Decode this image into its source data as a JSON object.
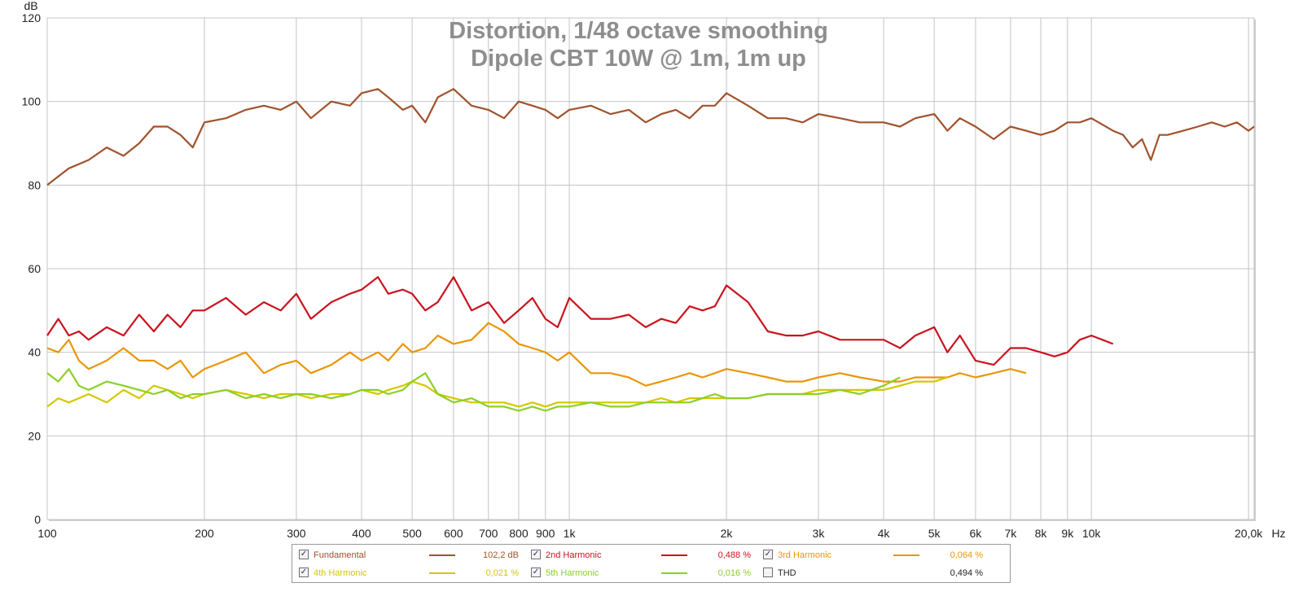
{
  "chart_data": {
    "type": "line",
    "title": "Distortion, 1/48 octave smoothing",
    "subtitle": "Dipole CBT 10W @ 1m, 1m up",
    "ylabel": "dB",
    "xunit": "Hz",
    "xscale": "log",
    "xlim": [
      100,
      20500
    ],
    "ylim": [
      0,
      120
    ],
    "grid": true,
    "yticks": [
      0,
      20,
      40,
      60,
      80,
      100,
      120
    ],
    "xticks": [
      {
        "v": 100,
        "label": "100"
      },
      {
        "v": 200,
        "label": "200"
      },
      {
        "v": 300,
        "label": "300"
      },
      {
        "v": 400,
        "label": "400"
      },
      {
        "v": 500,
        "label": "500"
      },
      {
        "v": 600,
        "label": "600"
      },
      {
        "v": 700,
        "label": "700"
      },
      {
        "v": 800,
        "label": "800"
      },
      {
        "v": 900,
        "label": "900"
      },
      {
        "v": 1000,
        "label": "1k"
      },
      {
        "v": 2000,
        "label": "2k"
      },
      {
        "v": 3000,
        "label": "3k"
      },
      {
        "v": 4000,
        "label": "4k"
      },
      {
        "v": 5000,
        "label": "5k"
      },
      {
        "v": 6000,
        "label": "6k"
      },
      {
        "v": 7000,
        "label": "7k"
      },
      {
        "v": 8000,
        "label": "8k"
      },
      {
        "v": 9000,
        "label": "9k"
      },
      {
        "v": 10000,
        "label": "10k"
      },
      {
        "v": 20000,
        "label": "20,0k"
      }
    ],
    "series": [
      {
        "name": "Fundamental",
        "color": "#a0522d",
        "x": [
          100,
          110,
          120,
          130,
          140,
          150,
          160,
          170,
          180,
          190,
          200,
          220,
          240,
          260,
          280,
          300,
          320,
          350,
          380,
          400,
          430,
          450,
          480,
          500,
          530,
          560,
          600,
          650,
          700,
          750,
          800,
          850,
          900,
          950,
          1000,
          1100,
          1200,
          1300,
          1400,
          1500,
          1600,
          1700,
          1800,
          1900,
          2000,
          2200,
          2400,
          2600,
          2800,
          3000,
          3300,
          3600,
          4000,
          4300,
          4600,
          5000,
          5300,
          5600,
          6000,
          6500,
          7000,
          7500,
          8000,
          8500,
          9000,
          9500,
          10000,
          11000,
          11500,
          12000,
          12500,
          13000,
          13500,
          14000,
          15000,
          16000,
          17000,
          18000,
          19000,
          20000,
          20500
        ],
        "y": [
          80,
          84,
          86,
          89,
          87,
          90,
          94,
          94,
          92,
          89,
          95,
          96,
          98,
          99,
          98,
          100,
          96,
          100,
          99,
          102,
          103,
          101,
          98,
          99,
          95,
          101,
          103,
          99,
          98,
          96,
          100,
          99,
          98,
          96,
          98,
          99,
          97,
          98,
          95,
          97,
          98,
          96,
          99,
          99,
          102,
          99,
          96,
          96,
          95,
          97,
          96,
          95,
          95,
          94,
          96,
          97,
          93,
          96,
          94,
          91,
          94,
          93,
          92,
          93,
          95,
          95,
          96,
          93,
          92,
          89,
          91,
          86,
          92,
          92,
          93,
          94,
          95,
          94,
          95,
          93,
          94
        ]
      },
      {
        "name": "2nd Harmonic",
        "color": "#c8141e",
        "x": [
          100,
          105,
          110,
          115,
          120,
          130,
          140,
          150,
          160,
          170,
          180,
          190,
          200,
          220,
          240,
          260,
          280,
          300,
          320,
          350,
          380,
          400,
          430,
          450,
          480,
          500,
          530,
          560,
          600,
          650,
          700,
          750,
          800,
          850,
          900,
          950,
          1000,
          1100,
          1200,
          1300,
          1400,
          1500,
          1600,
          1700,
          1800,
          1900,
          2000,
          2200,
          2400,
          2600,
          2800,
          3000,
          3300,
          3600,
          4000,
          4300,
          4600,
          5000,
          5300,
          5600,
          6000,
          6500,
          7000,
          7500,
          8000,
          8500,
          9000,
          9500,
          10000,
          10500,
          11000
        ],
        "y": [
          44,
          48,
          44,
          45,
          43,
          46,
          44,
          49,
          45,
          49,
          46,
          50,
          50,
          53,
          49,
          52,
          50,
          54,
          48,
          52,
          54,
          55,
          58,
          54,
          55,
          54,
          50,
          52,
          58,
          50,
          52,
          47,
          50,
          53,
          48,
          46,
          53,
          48,
          48,
          49,
          46,
          48,
          47,
          51,
          50,
          51,
          56,
          52,
          45,
          44,
          44,
          45,
          43,
          43,
          43,
          41,
          44,
          46,
          40,
          44,
          38,
          37,
          41,
          41,
          40,
          39,
          40,
          43,
          44,
          43,
          42
        ]
      },
      {
        "name": "3rd Harmonic",
        "color": "#e8960a",
        "x": [
          100,
          105,
          110,
          115,
          120,
          130,
          140,
          150,
          160,
          170,
          180,
          190,
          200,
          220,
          240,
          260,
          280,
          300,
          320,
          350,
          380,
          400,
          430,
          450,
          480,
          500,
          530,
          560,
          600,
          650,
          700,
          750,
          800,
          850,
          900,
          950,
          1000,
          1100,
          1200,
          1300,
          1400,
          1500,
          1600,
          1700,
          1800,
          1900,
          2000,
          2200,
          2400,
          2600,
          2800,
          3000,
          3300,
          3600,
          4000,
          4300,
          4600,
          5000,
          5300,
          5600,
          6000,
          6500,
          7000,
          7500
        ],
        "y": [
          41,
          40,
          43,
          38,
          36,
          38,
          41,
          38,
          38,
          36,
          38,
          34,
          36,
          38,
          40,
          35,
          37,
          38,
          35,
          37,
          40,
          38,
          40,
          38,
          42,
          40,
          41,
          44,
          42,
          43,
          47,
          45,
          42,
          41,
          40,
          38,
          40,
          35,
          35,
          34,
          32,
          33,
          34,
          35,
          34,
          35,
          36,
          35,
          34,
          33,
          33,
          34,
          35,
          34,
          33,
          33,
          34,
          34,
          34,
          35,
          34,
          35,
          36,
          35
        ]
      },
      {
        "name": "4th Harmonic",
        "color": "#d4c800",
        "x": [
          100,
          105,
          110,
          115,
          120,
          130,
          140,
          150,
          160,
          170,
          180,
          190,
          200,
          220,
          240,
          260,
          280,
          300,
          320,
          350,
          380,
          400,
          430,
          450,
          480,
          500,
          530,
          560,
          600,
          650,
          700,
          750,
          800,
          850,
          900,
          950,
          1000,
          1100,
          1200,
          1300,
          1400,
          1500,
          1600,
          1700,
          1800,
          1900,
          2000,
          2200,
          2400,
          2600,
          2800,
          3000,
          3300,
          3600,
          4000,
          4300,
          4600,
          5000,
          5300
        ],
        "y": [
          27,
          29,
          28,
          29,
          30,
          28,
          31,
          29,
          32,
          31,
          30,
          29,
          30,
          31,
          30,
          29,
          30,
          30,
          29,
          30,
          30,
          31,
          30,
          31,
          32,
          33,
          32,
          30,
          29,
          28,
          28,
          28,
          27,
          28,
          27,
          28,
          28,
          28,
          28,
          28,
          28,
          29,
          28,
          29,
          29,
          29,
          29,
          29,
          30,
          30,
          30,
          31,
          31,
          31,
          31,
          32,
          33,
          33,
          34
        ]
      },
      {
        "name": "5th Harmonic",
        "color": "#8ccf28",
        "x": [
          100,
          105,
          110,
          115,
          120,
          130,
          140,
          150,
          160,
          170,
          180,
          190,
          200,
          220,
          240,
          260,
          280,
          300,
          320,
          350,
          380,
          400,
          430,
          450,
          480,
          500,
          530,
          560,
          600,
          650,
          700,
          750,
          800,
          850,
          900,
          950,
          1000,
          1100,
          1200,
          1300,
          1400,
          1500,
          1600,
          1700,
          1800,
          1900,
          2000,
          2200,
          2400,
          2600,
          2800,
          3000,
          3300,
          3600,
          4000,
          4300
        ],
        "y": [
          35,
          33,
          36,
          32,
          31,
          33,
          32,
          31,
          30,
          31,
          29,
          30,
          30,
          31,
          29,
          30,
          29,
          30,
          30,
          29,
          30,
          31,
          31,
          30,
          31,
          33,
          35,
          30,
          28,
          29,
          27,
          27,
          26,
          27,
          26,
          27,
          27,
          28,
          27,
          27,
          28,
          28,
          28,
          28,
          29,
          30,
          29,
          29,
          30,
          30,
          30,
          30,
          31,
          30,
          32,
          34
        ]
      }
    ],
    "legend_placement": "bottom-center"
  },
  "legend": [
    {
      "label": "Fundamental",
      "value": "102,2 dB",
      "color": "#a0522d",
      "checked": true
    },
    {
      "label": "2nd Harmonic",
      "value": "0,488 %",
      "color": "#c8141e",
      "checked": true
    },
    {
      "label": "3rd Harmonic",
      "value": "0,064 %",
      "color": "#e8960a",
      "checked": true
    },
    {
      "label": "4th Harmonic",
      "value": "0,021 %",
      "color": "#d4c800",
      "checked": true
    },
    {
      "label": "5th Harmonic",
      "value": "0,016 %",
      "color": "#8ccf28",
      "checked": true
    },
    {
      "label": "THD",
      "value": "0,494 %",
      "color": "",
      "checked": false
    }
  ]
}
